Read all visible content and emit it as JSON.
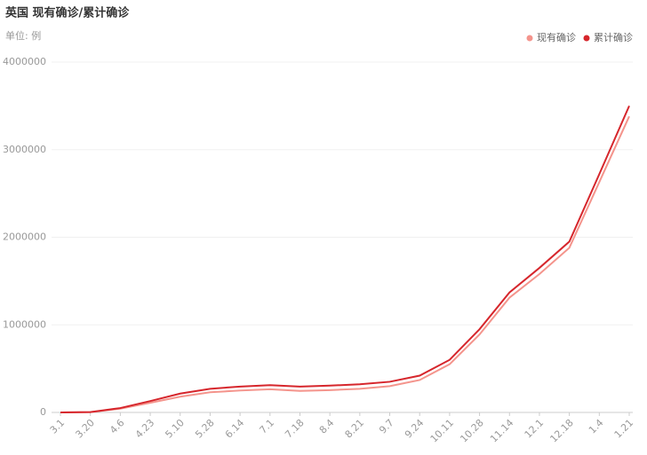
{
  "chart_data": {
    "type": "line",
    "title": "英国 现有确诊/累计确诊",
    "subtitle": "单位: 例",
    "categories": [
      "3.1",
      "3.20",
      "4.6",
      "4.23",
      "5.10",
      "5.28",
      "6.14",
      "7.1",
      "7.18",
      "8.4",
      "8.21",
      "9.7",
      "9.24",
      "10.11",
      "10.28",
      "11.14",
      "12.1",
      "12.18",
      "1.4",
      "1.21"
    ],
    "series": [
      {
        "name": "现有确诊",
        "color": "#f4948c",
        "values": [
          0,
          3800,
          43000,
          110000,
          180000,
          230000,
          250000,
          265000,
          245000,
          255000,
          270000,
          300000,
          370000,
          550000,
          890000,
          1310000,
          1580000,
          1880000,
          2630000,
          3380000
        ]
      },
      {
        "name": "累计确诊",
        "color": "#d6262c",
        "values": [
          0,
          4000,
          50000,
          130000,
          215000,
          270000,
          295000,
          312000,
          295000,
          306000,
          322000,
          350000,
          420000,
          600000,
          950000,
          1370000,
          1650000,
          1950000,
          2720000,
          3500000
        ]
      }
    ],
    "ylim": [
      0,
      4000000
    ],
    "yticks": [
      0,
      1000000,
      2000000,
      3000000,
      4000000
    ],
    "grid": true,
    "legend": "top-right"
  }
}
